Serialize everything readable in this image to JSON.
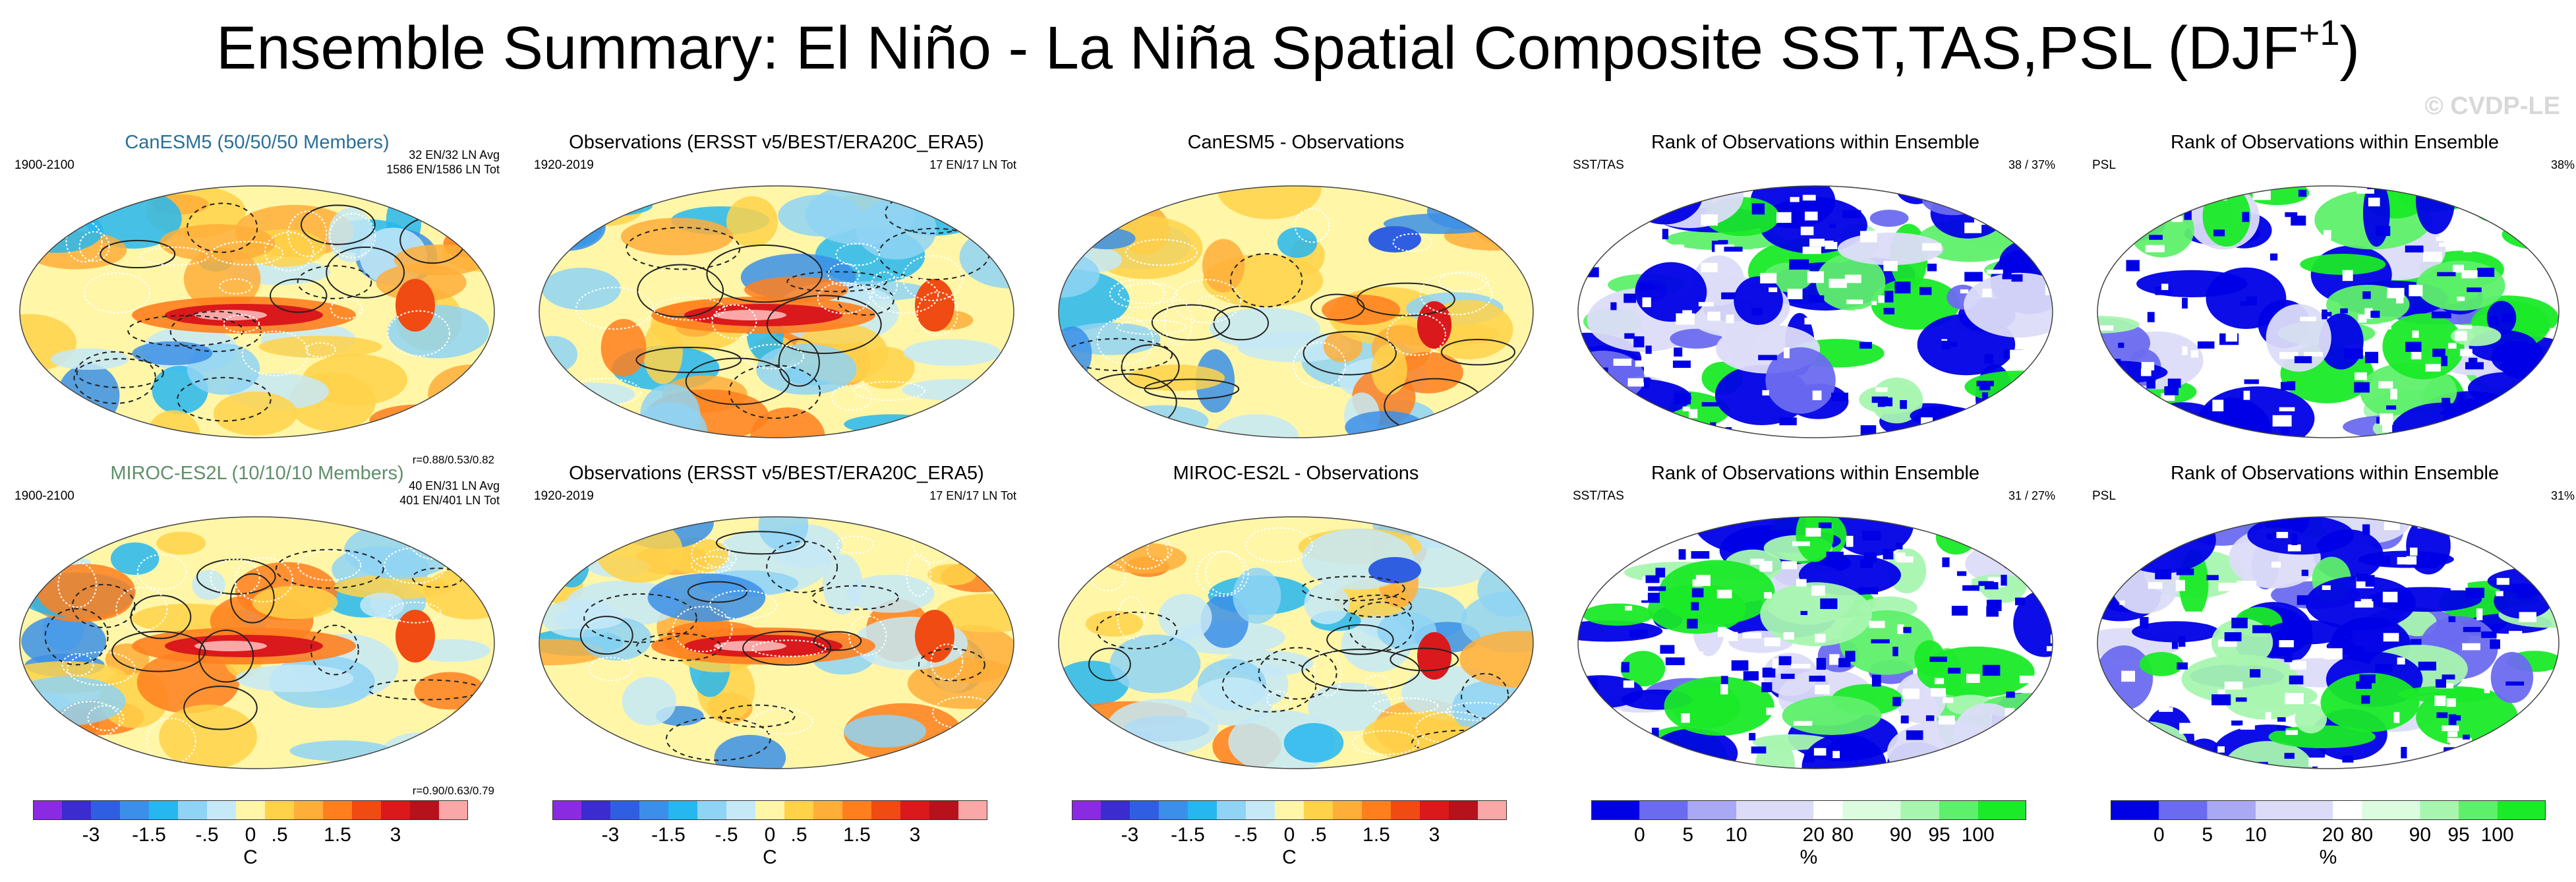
{
  "title_main": "Ensemble Summary: El Niño - La Niña Spatial Composite SST,TAS,PSL (DJF",
  "title_sup": "+1",
  "title_close": ")",
  "watermark": "© CVDP-LE",
  "rows": [
    {
      "model_panel": {
        "title": "CanESM5 (50/50/50 Members)",
        "title_color": "#2a6f98",
        "period": "1900-2100",
        "info_line1": "32 EN/32 LN Avg",
        "info_line2": "1586 EN/1586 LN Tot",
        "corr": "r=0.88/0.53/0.82"
      },
      "obs_panel": {
        "title": "Observations (ERSST v5/BEST/ERA20C_ERA5)",
        "period": "1920-2019",
        "info": "17 EN/17 LN Tot"
      },
      "diff_panel": {
        "title": "CanESM5 - Observations"
      },
      "rank_sst_panel": {
        "title": "Rank of Observations within Ensemble",
        "variable": "SST/TAS",
        "pct": "38 /  37%"
      },
      "rank_psl_panel": {
        "title": "Rank of Observations within Ensemble",
        "variable": "PSL",
        "pct": "38%"
      }
    },
    {
      "model_panel": {
        "title": "MIROC-ES2L (10/10/10 Members)",
        "title_color": "#5f8f6a",
        "period": "1900-2100",
        "info_line1": "40 EN/31 LN Avg",
        "info_line2": "401 EN/401 LN Tot",
        "corr": "r=0.90/0.63/0.79"
      },
      "obs_panel": {
        "title": "Observations (ERSST v5/BEST/ERA20C_ERA5)",
        "period": "1920-2019",
        "info": "17 EN/17 LN Tot"
      },
      "diff_panel": {
        "title": "MIROC-ES2L - Observations"
      },
      "rank_sst_panel": {
        "title": "Rank of Observations within Ensemble",
        "variable": "SST/TAS",
        "pct": "31 /  27%"
      },
      "rank_psl_panel": {
        "title": "Rank of Observations within Ensemble",
        "variable": "PSL",
        "pct": "31%"
      }
    }
  ],
  "temp_colorbar": {
    "colors": [
      "#8a2be2",
      "#3a2ccf",
      "#2f5fe0",
      "#3b8fe8",
      "#26b7f0",
      "#8fd3f5",
      "#c6e9f7",
      "#fff6a8",
      "#ffd24a",
      "#ffae3a",
      "#ff7f1f",
      "#f04b12",
      "#d9191b",
      "#b5121b",
      "#f9a7a7"
    ],
    "labels": [
      "-3",
      "-1.5",
      "-.5",
      "0",
      ".5",
      "1.5",
      "3"
    ],
    "unit": "C"
  },
  "rank_colorbar": {
    "colors": [
      "#0000e6",
      "#6b6bf0",
      "#a8a8f4",
      "#dcdcf8",
      "#ffffff",
      "#dcfce0",
      "#a8f5b0",
      "#5ef06a",
      "#1aea28"
    ],
    "labels": [
      "0",
      "5",
      "10",
      "20",
      "80",
      "90",
      "95",
      "100"
    ],
    "unit": "%"
  }
}
